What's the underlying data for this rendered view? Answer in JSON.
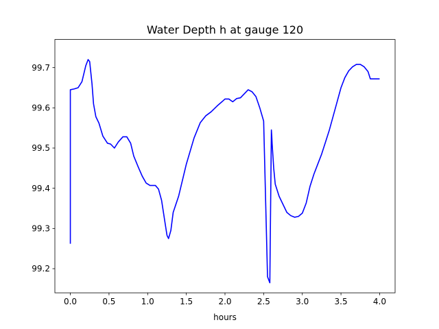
{
  "chart_data": {
    "type": "line",
    "title": "Water Depth h at gauge 120",
    "xlabel": "hours",
    "ylabel": "",
    "xlim": [
      -0.2,
      4.2
    ],
    "ylim": [
      99.14,
      99.77
    ],
    "xticks": [
      0.0,
      0.5,
      1.0,
      1.5,
      2.0,
      2.5,
      3.0,
      3.5,
      4.0
    ],
    "xtick_labels": [
      "0.0",
      "0.5",
      "1.0",
      "1.5",
      "2.0",
      "2.5",
      "3.0",
      "3.5",
      "4.0"
    ],
    "yticks": [
      99.2,
      99.3,
      99.4,
      99.5,
      99.6,
      99.7
    ],
    "ytick_labels": [
      "99.2",
      "99.3",
      "99.4",
      "99.5",
      "99.6",
      "99.7"
    ],
    "grid": false,
    "series": [
      {
        "color": "#0000ff",
        "x": [
          0.0,
          0.0,
          0.05,
          0.1,
          0.15,
          0.2,
          0.23,
          0.25,
          0.28,
          0.3,
          0.33,
          0.37,
          0.42,
          0.48,
          0.52,
          0.57,
          0.62,
          0.68,
          0.73,
          0.78,
          0.82,
          0.88,
          0.93,
          0.98,
          1.03,
          1.1,
          1.14,
          1.18,
          1.22,
          1.25,
          1.27,
          1.3,
          1.33,
          1.4,
          1.5,
          1.6,
          1.68,
          1.75,
          1.82,
          1.9,
          1.96,
          2.0,
          2.05,
          2.1,
          2.15,
          2.2,
          2.25,
          2.3,
          2.35,
          2.4,
          2.45,
          2.5,
          2.55,
          2.58,
          2.58,
          2.6,
          2.605,
          2.61,
          2.62,
          2.63,
          2.65,
          2.7,
          2.75,
          2.8,
          2.85,
          2.9,
          2.95,
          3.0,
          3.05,
          3.1,
          3.15,
          3.2,
          3.25,
          3.3,
          3.35,
          3.4,
          3.45,
          3.5,
          3.55,
          3.6,
          3.65,
          3.7,
          3.75,
          3.8,
          3.85,
          3.88,
          3.9,
          3.93,
          3.97,
          4.0
        ],
        "y": [
          99.262,
          99.645,
          99.647,
          99.65,
          99.665,
          99.705,
          99.72,
          99.715,
          99.66,
          99.61,
          99.578,
          99.562,
          99.53,
          99.512,
          99.51,
          99.5,
          99.515,
          99.528,
          99.528,
          99.512,
          99.48,
          99.452,
          99.43,
          99.413,
          99.407,
          99.407,
          99.398,
          99.37,
          99.32,
          99.283,
          99.275,
          99.295,
          99.34,
          99.38,
          99.46,
          99.525,
          99.563,
          99.58,
          99.59,
          99.605,
          99.615,
          99.622,
          99.622,
          99.615,
          99.623,
          99.625,
          99.635,
          99.645,
          99.64,
          99.628,
          99.6,
          99.567,
          99.18,
          99.165,
          99.165,
          99.545,
          99.53,
          99.51,
          99.48,
          99.45,
          99.41,
          99.38,
          99.36,
          99.34,
          99.332,
          99.328,
          99.33,
          99.338,
          99.363,
          99.405,
          99.435,
          99.46,
          99.485,
          99.515,
          99.545,
          99.58,
          99.615,
          99.65,
          99.675,
          99.692,
          99.702,
          99.708,
          99.708,
          99.702,
          99.69,
          99.672,
          99.672,
          99.672,
          99.672,
          99.672
        ]
      }
    ]
  }
}
